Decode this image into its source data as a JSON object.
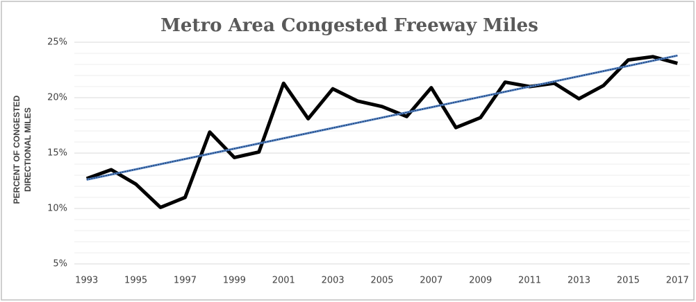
{
  "chart_data": {
    "type": "line",
    "title": "Metro Area Congested Freeway Miles",
    "y_label": "PERCENT OF CONGESTED DIRECTIONAL MILES",
    "x": [
      1993,
      1994,
      1995,
      1996,
      1997,
      1998,
      1999,
      2000,
      2001,
      2002,
      2003,
      2004,
      2005,
      2006,
      2007,
      2008,
      2009,
      2010,
      2011,
      2012,
      2013,
      2014,
      2015,
      2016,
      2017
    ],
    "series": [
      {
        "color": "#000000",
        "values": [
          12.7,
          13.5,
          12.2,
          10.1,
          11.0,
          16.9,
          14.6,
          15.1,
          21.3,
          18.1,
          20.8,
          19.7,
          19.2,
          18.3,
          20.9,
          17.3,
          18.2,
          21.4,
          21.0,
          21.3,
          19.9,
          21.1,
          23.4,
          23.7,
          23.1
        ]
      }
    ],
    "trendline": {
      "color": "#4f7fc0",
      "x": [
        1993,
        2017
      ],
      "values": [
        12.6,
        23.8
      ]
    },
    "xlim": [
      1992.5,
      2017.5
    ],
    "xticks": [
      1993,
      1995,
      1997,
      1999,
      2001,
      2003,
      2005,
      2007,
      2009,
      2011,
      2013,
      2015,
      2017
    ],
    "ylim": [
      5,
      25
    ],
    "yticks": [
      {
        "value": 5,
        "label": "5%"
      },
      {
        "value": 10,
        "label": "10%"
      },
      {
        "value": 15,
        "label": "15%"
      },
      {
        "value": 20,
        "label": "20%"
      },
      {
        "value": 25,
        "label": "25%"
      }
    ],
    "yminorticks": [
      6,
      7,
      8,
      9,
      11,
      12,
      13,
      14,
      16,
      17,
      18,
      19,
      21,
      22,
      23,
      24
    ],
    "grid": true
  }
}
